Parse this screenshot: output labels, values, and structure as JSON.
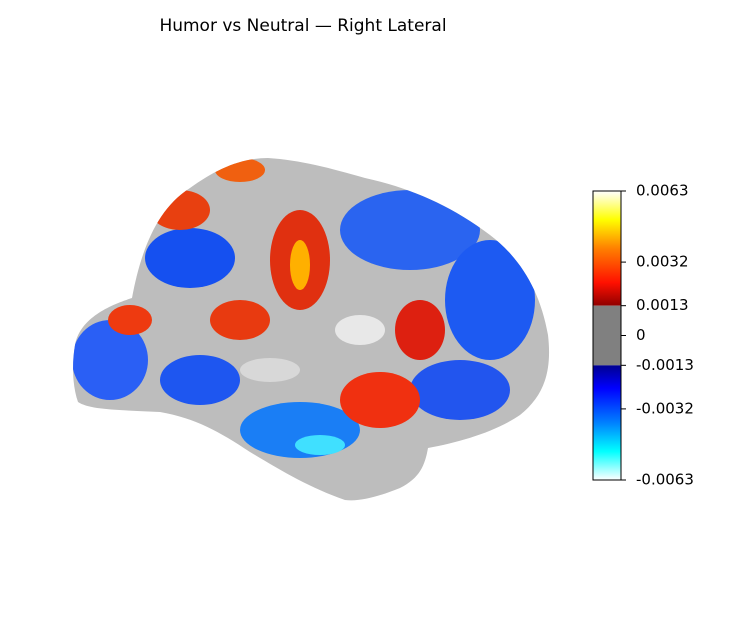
{
  "chart_data": {
    "type": "surface",
    "title": "Humor vs Neutral — Right Lateral",
    "colorbar": {
      "cmap": "cold_hot",
      "threshold": 0.0013,
      "ylim": [
        -0.0063,
        0.0063
      ],
      "yticks": [
        0.0063,
        0.0032,
        0.0013,
        0,
        -0.0013,
        -0.0032,
        -0.0063
      ]
    }
  }
}
